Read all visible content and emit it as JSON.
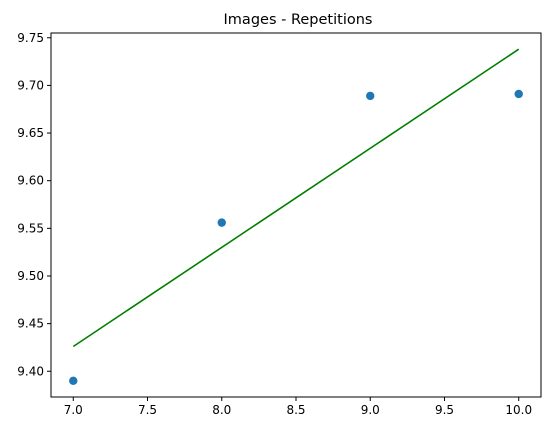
{
  "chart_data": {
    "type": "scatter",
    "title": "Images - Repetitions",
    "xlabel": "",
    "ylabel": "",
    "xlim": [
      6.85,
      10.15
    ],
    "ylim": [
      9.373,
      9.755
    ],
    "x_ticks": [
      7.0,
      7.5,
      8.0,
      8.5,
      9.0,
      9.5,
      10.0
    ],
    "x_tick_labels": [
      "7.0",
      "7.5",
      "8.0",
      "8.5",
      "9.0",
      "9.5",
      "10.0"
    ],
    "y_ticks": [
      9.4,
      9.45,
      9.5,
      9.55,
      9.6,
      9.65,
      9.7,
      9.75
    ],
    "y_tick_labels": [
      "9.40",
      "9.45",
      "9.50",
      "9.55",
      "9.60",
      "9.65",
      "9.70",
      "9.75"
    ],
    "grid": false,
    "series": [
      {
        "kind": "scatter",
        "color": "#1f77b4",
        "x": [
          7,
          8,
          9,
          10
        ],
        "y": [
          9.39,
          9.556,
          9.689,
          9.691
        ]
      },
      {
        "kind": "line",
        "color": "#008000",
        "x": [
          7,
          10
        ],
        "y": [
          9.426,
          9.738
        ]
      }
    ]
  }
}
